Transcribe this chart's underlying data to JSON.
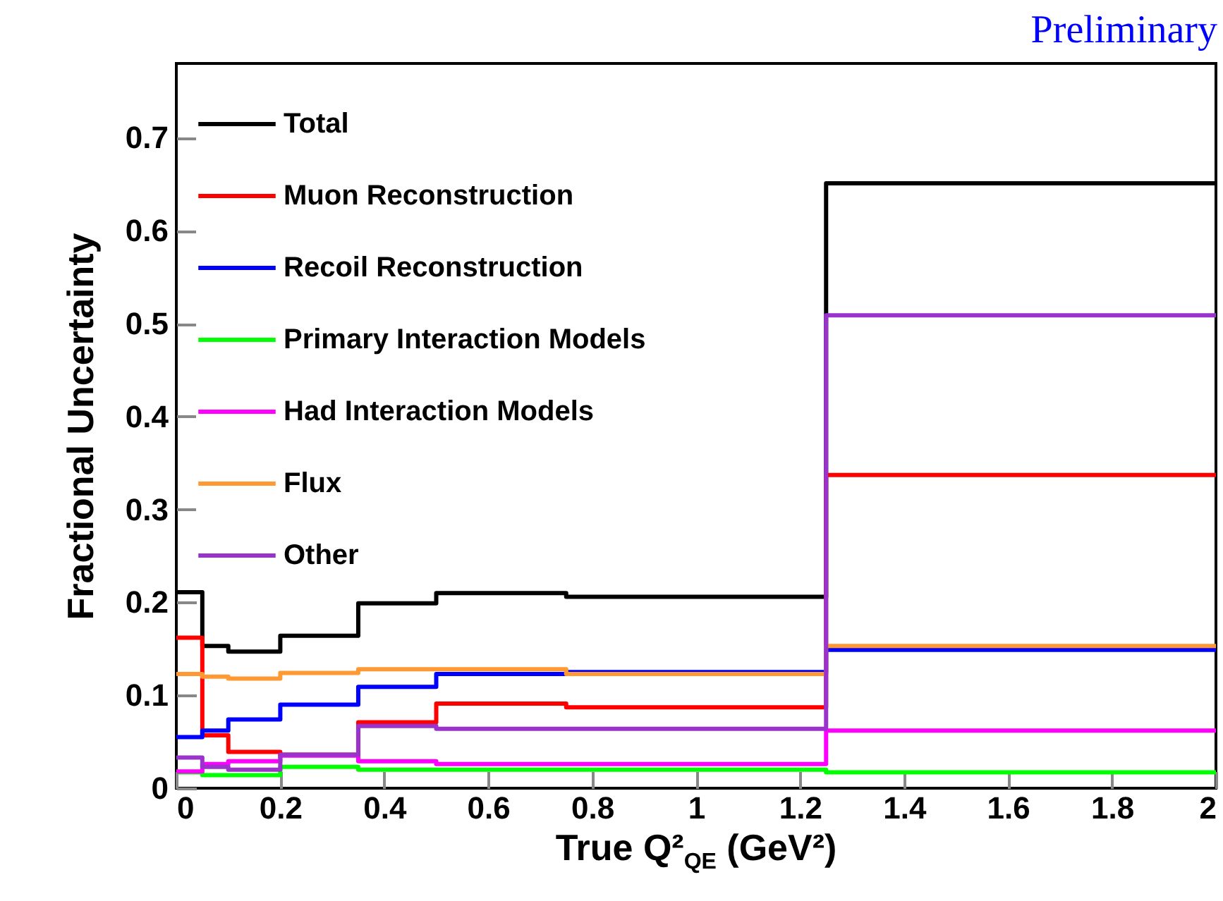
{
  "chart_data": {
    "type": "histogram",
    "annotations": [
      "Preliminary"
    ],
    "xlabel": "True Q²$_{QE}$ (GeV²)",
    "ylabel": "Fractional Uncertainty",
    "bins": [
      0,
      0.05,
      0.1,
      0.2,
      0.35,
      0.5,
      0.75,
      1.25,
      2
    ],
    "series": [
      {
        "name": "Total",
        "color": "#000000",
        "values": [
          0.211,
          0.153,
          0.147,
          0.164,
          0.199,
          0.21,
          0.206,
          0.651
        ]
      },
      {
        "name": "Muon Reconstruction",
        "color": "#ff0000",
        "values": [
          0.162,
          0.057,
          0.039,
          0.036,
          0.071,
          0.091,
          0.087,
          0.337
        ]
      },
      {
        "name": "Recoil Reconstruction",
        "color": "#0000ff",
        "values": [
          0.055,
          0.062,
          0.074,
          0.09,
          0.109,
          0.123,
          0.125,
          0.149
        ]
      },
      {
        "name": "Primary Interaction Models",
        "color": "#00ff00",
        "values": [
          0.017,
          0.014,
          0.014,
          0.023,
          0.02,
          0.02,
          0.02,
          0.017
        ]
      },
      {
        "name": "Had Interaction Models",
        "color": "#ff00ff",
        "values": [
          0.018,
          0.026,
          0.029,
          0.035,
          0.029,
          0.026,
          0.026,
          0.062
        ]
      },
      {
        "name": "Flux",
        "color": "#ff9933",
        "values": [
          0.123,
          0.12,
          0.118,
          0.124,
          0.128,
          0.128,
          0.123,
          0.153
        ]
      },
      {
        "name": "Other",
        "color": "#9933cc",
        "values": [
          0.033,
          0.023,
          0.02,
          0.036,
          0.067,
          0.064,
          0.064,
          0.509
        ]
      }
    ],
    "xlim": [
      0,
      2
    ],
    "xticks": [
      0,
      0.2,
      0.4,
      0.6,
      0.8,
      1,
      1.2,
      1.4,
      1.6,
      1.8,
      2
    ],
    "ylim": [
      0,
      0.78
    ],
    "yticks": [
      0,
      0.1,
      0.2,
      0.3,
      0.4,
      0.5,
      0.6,
      0.7
    ],
    "legend": "top left"
  }
}
